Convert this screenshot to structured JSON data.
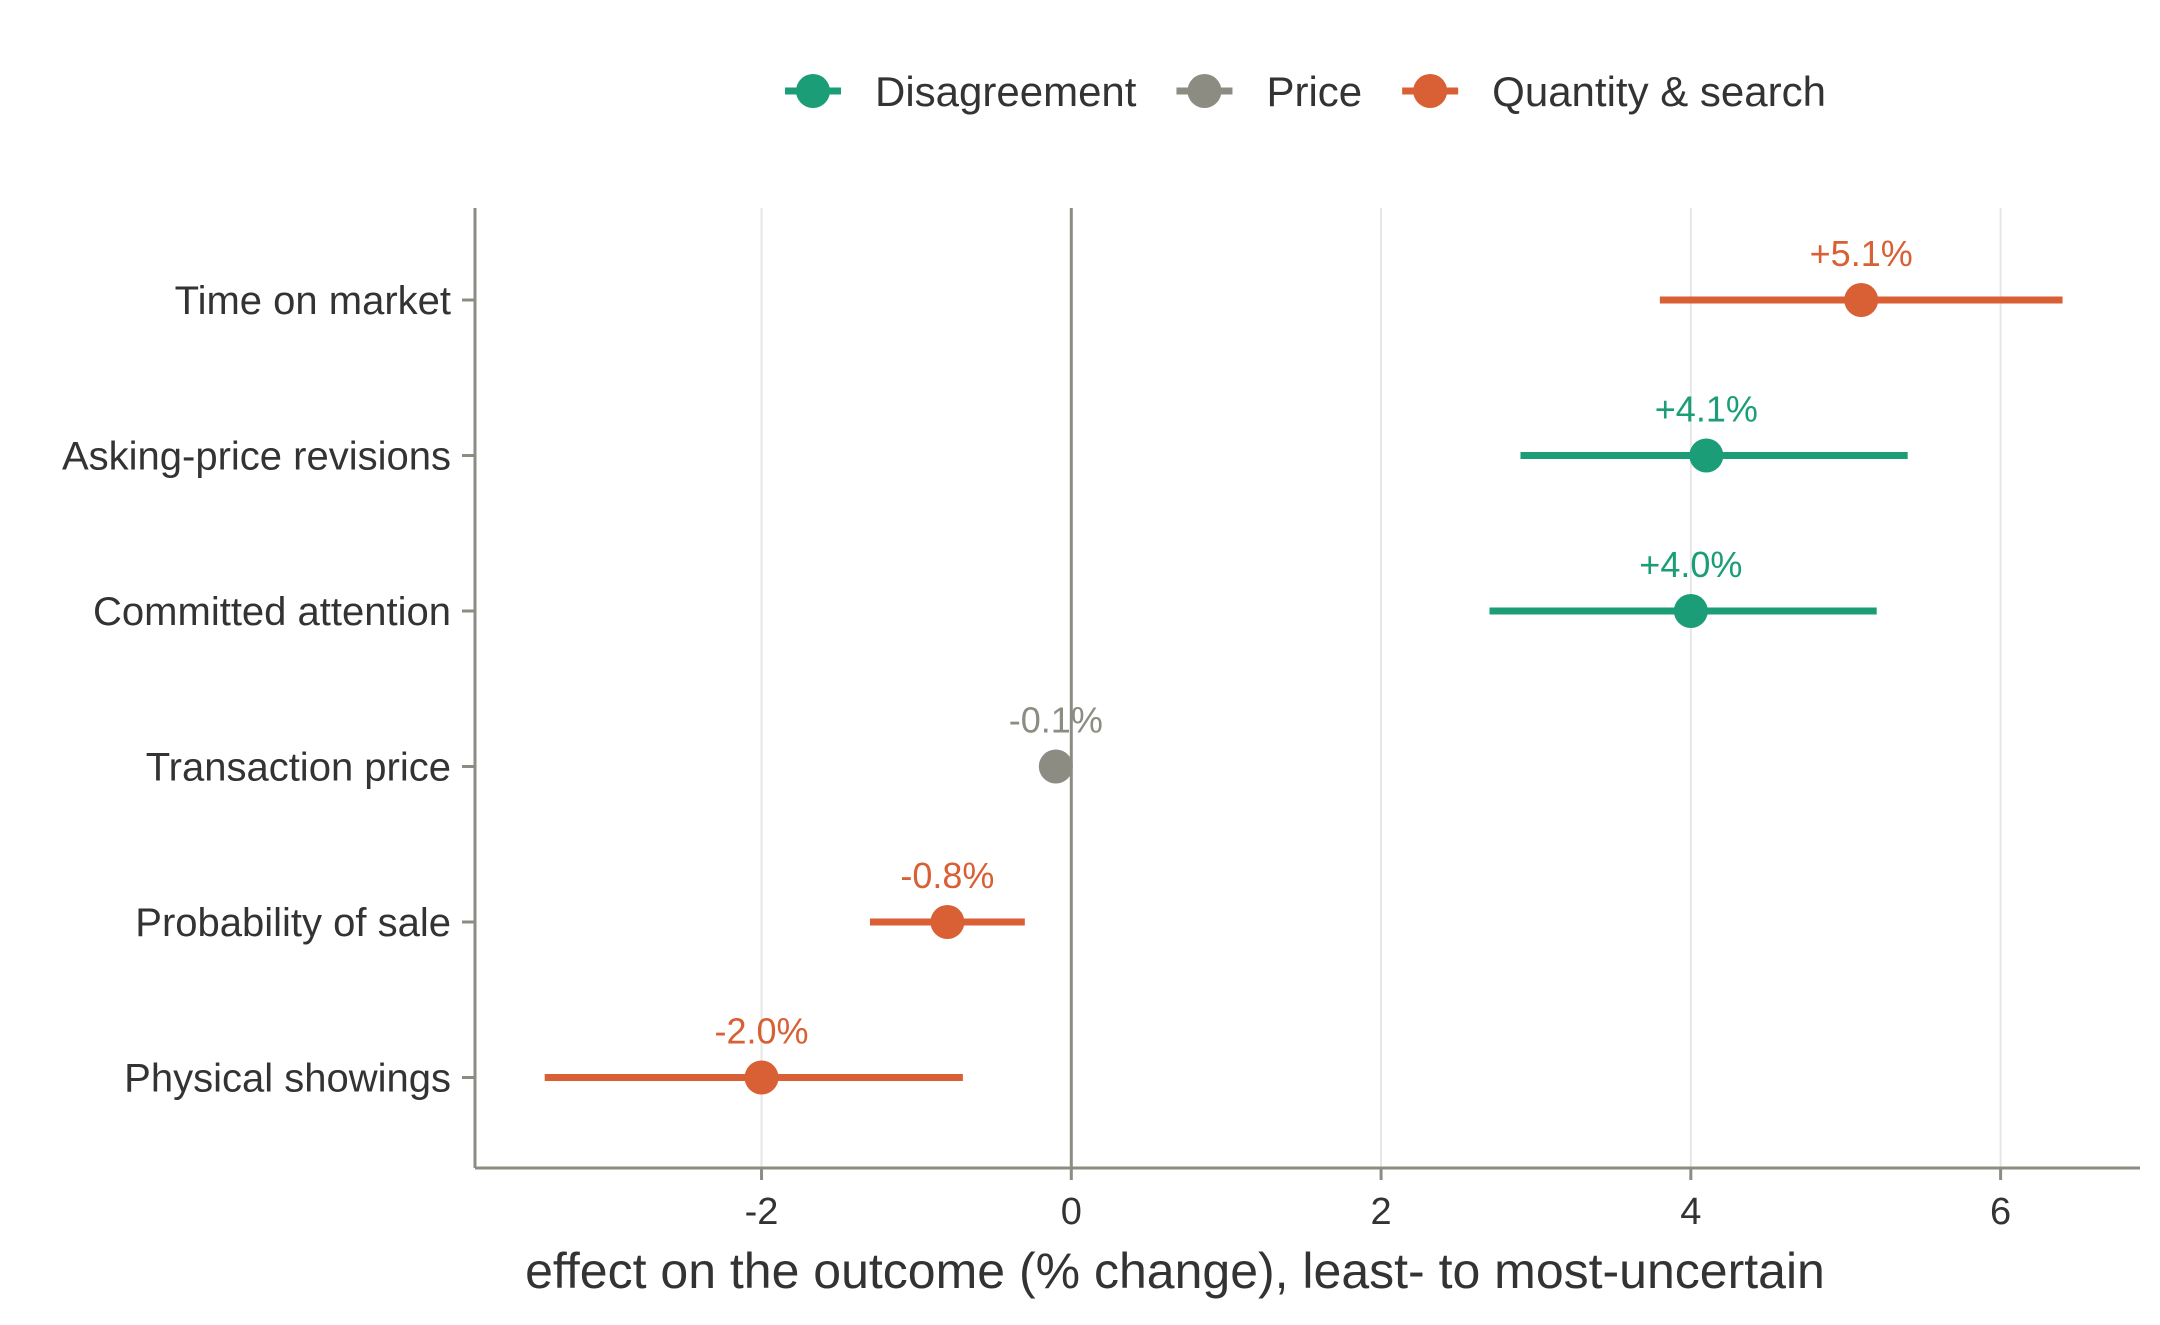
{
  "chart_data": {
    "type": "scatter",
    "subtype": "dot-and-interval",
    "title": "",
    "xlabel": "effect on the outcome (% change), least- to most-uncertain",
    "ylabel": "",
    "xlim": [
      -3.85,
      6.9
    ],
    "xticks": [
      -2,
      0,
      2,
      4,
      6
    ],
    "xtick_labels": [
      "-2",
      "0",
      "2",
      "4",
      "6"
    ],
    "grid": "vertical major gridlines",
    "reference_line": 0,
    "legend": {
      "placement": "top",
      "entries": [
        {
          "name": "Disagreement",
          "color": "#1b9e77"
        },
        {
          "name": "Price",
          "color": "#8c8c83"
        },
        {
          "name": "Quantity & search",
          "color": "#d95f35"
        }
      ]
    },
    "categories": [
      "Time on market",
      "Asking-price revisions",
      "Committed attention",
      "Transaction price",
      "Probability of sale",
      "Physical showings"
    ],
    "points": [
      {
        "category": "Time on market",
        "group": "Quantity & search",
        "estimate": 5.1,
        "low": 3.8,
        "high": 6.4,
        "label": "+5.1%"
      },
      {
        "category": "Asking-price revisions",
        "group": "Disagreement",
        "estimate": 4.1,
        "low": 2.9,
        "high": 5.4,
        "label": "+4.1%"
      },
      {
        "category": "Committed attention",
        "group": "Disagreement",
        "estimate": 4.0,
        "low": 2.7,
        "high": 5.2,
        "label": "+4.0%"
      },
      {
        "category": "Transaction price",
        "group": "Price",
        "estimate": -0.1,
        "low": -0.1,
        "high": -0.1,
        "label": "-0.1%"
      },
      {
        "category": "Probability of sale",
        "group": "Quantity & search",
        "estimate": -0.8,
        "low": -1.3,
        "high": -0.3,
        "label": "-0.8%"
      },
      {
        "category": "Physical showings",
        "group": "Quantity & search",
        "estimate": -2.0,
        "low": -3.4,
        "high": -0.7,
        "label": "-2.0%"
      }
    ]
  }
}
